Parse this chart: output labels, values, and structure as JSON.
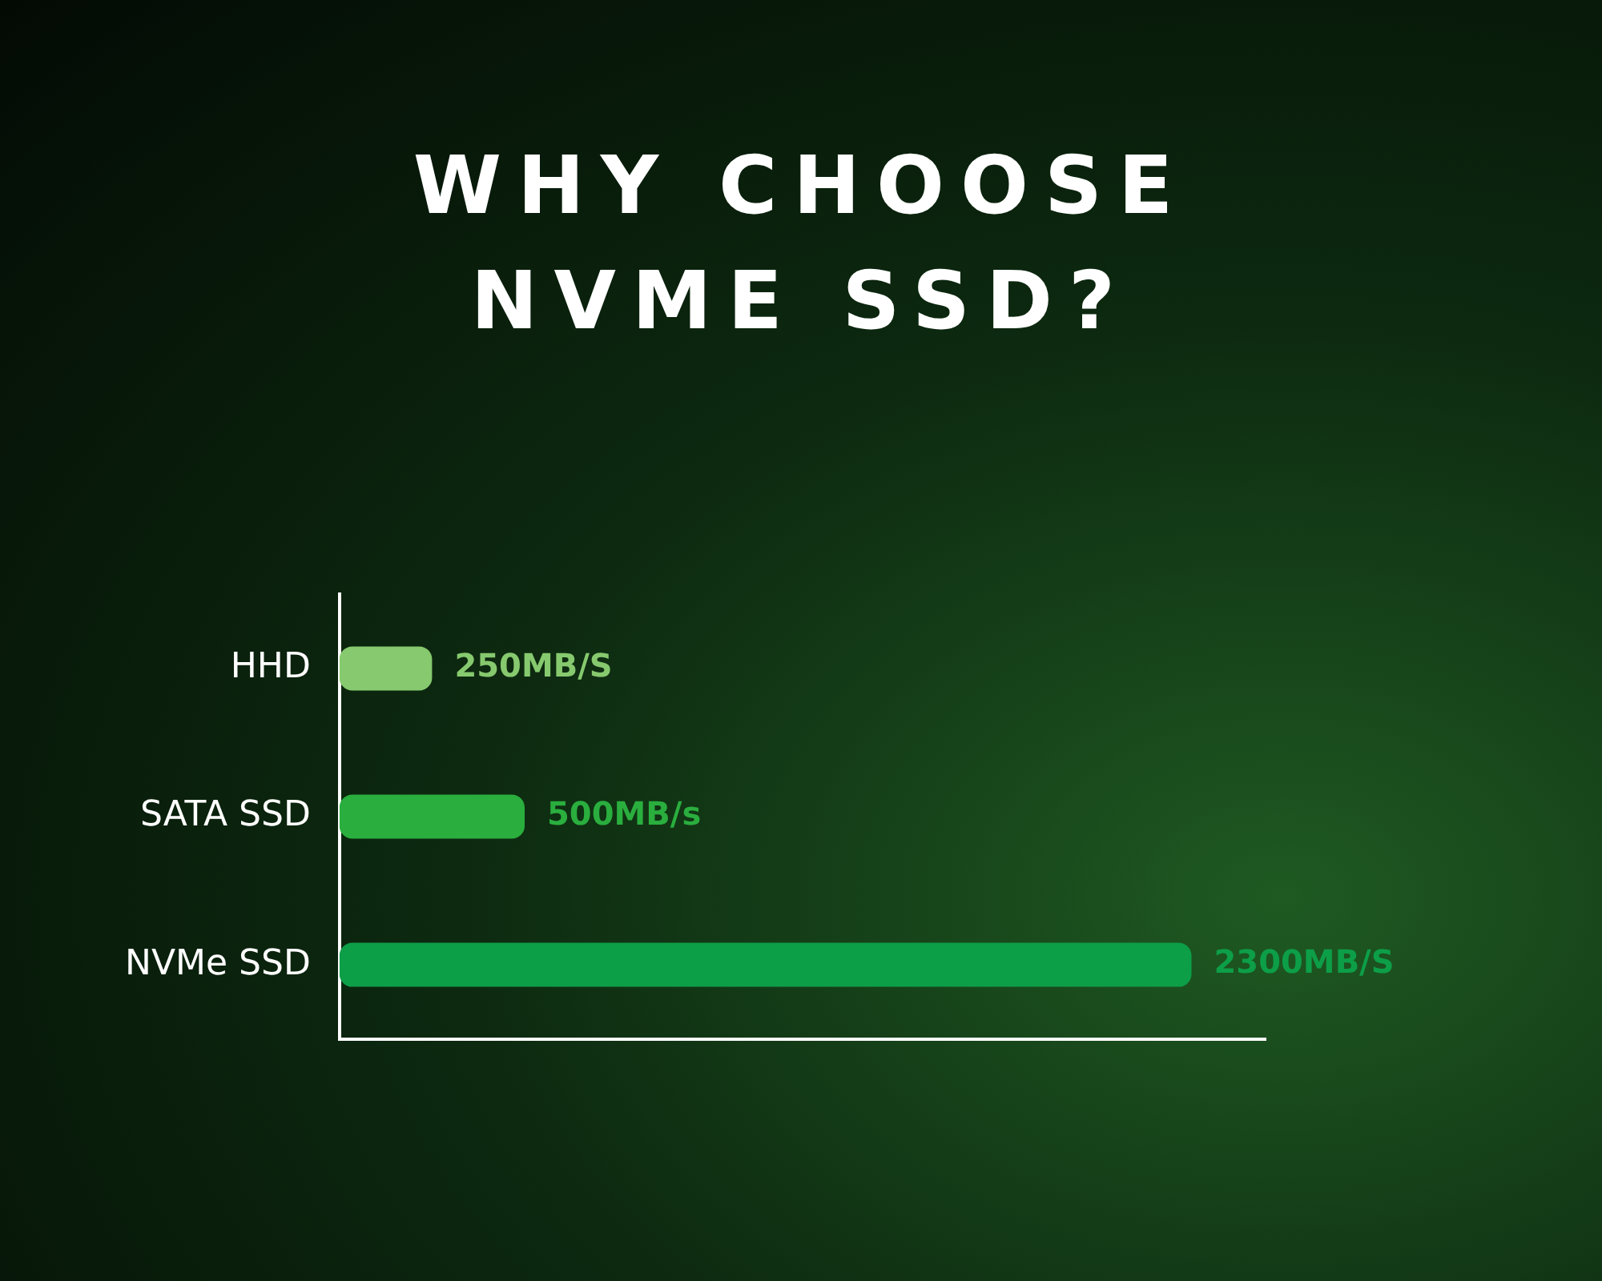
{
  "chart_data": {
    "type": "bar",
    "orientation": "horizontal",
    "title": "WHY CHOOSE NVME SSD?",
    "categories": [
      "HHD",
      "SATA SSD",
      "NVMe SSD"
    ],
    "values": [
      250,
      500,
      2300
    ],
    "colors": [
      "#86c96e",
      "#2aae3e",
      "#0d9e48"
    ],
    "value_labels": [
      "250MB/S",
      "500MB/s",
      "2300MB/S"
    ],
    "grid": false
  }
}
